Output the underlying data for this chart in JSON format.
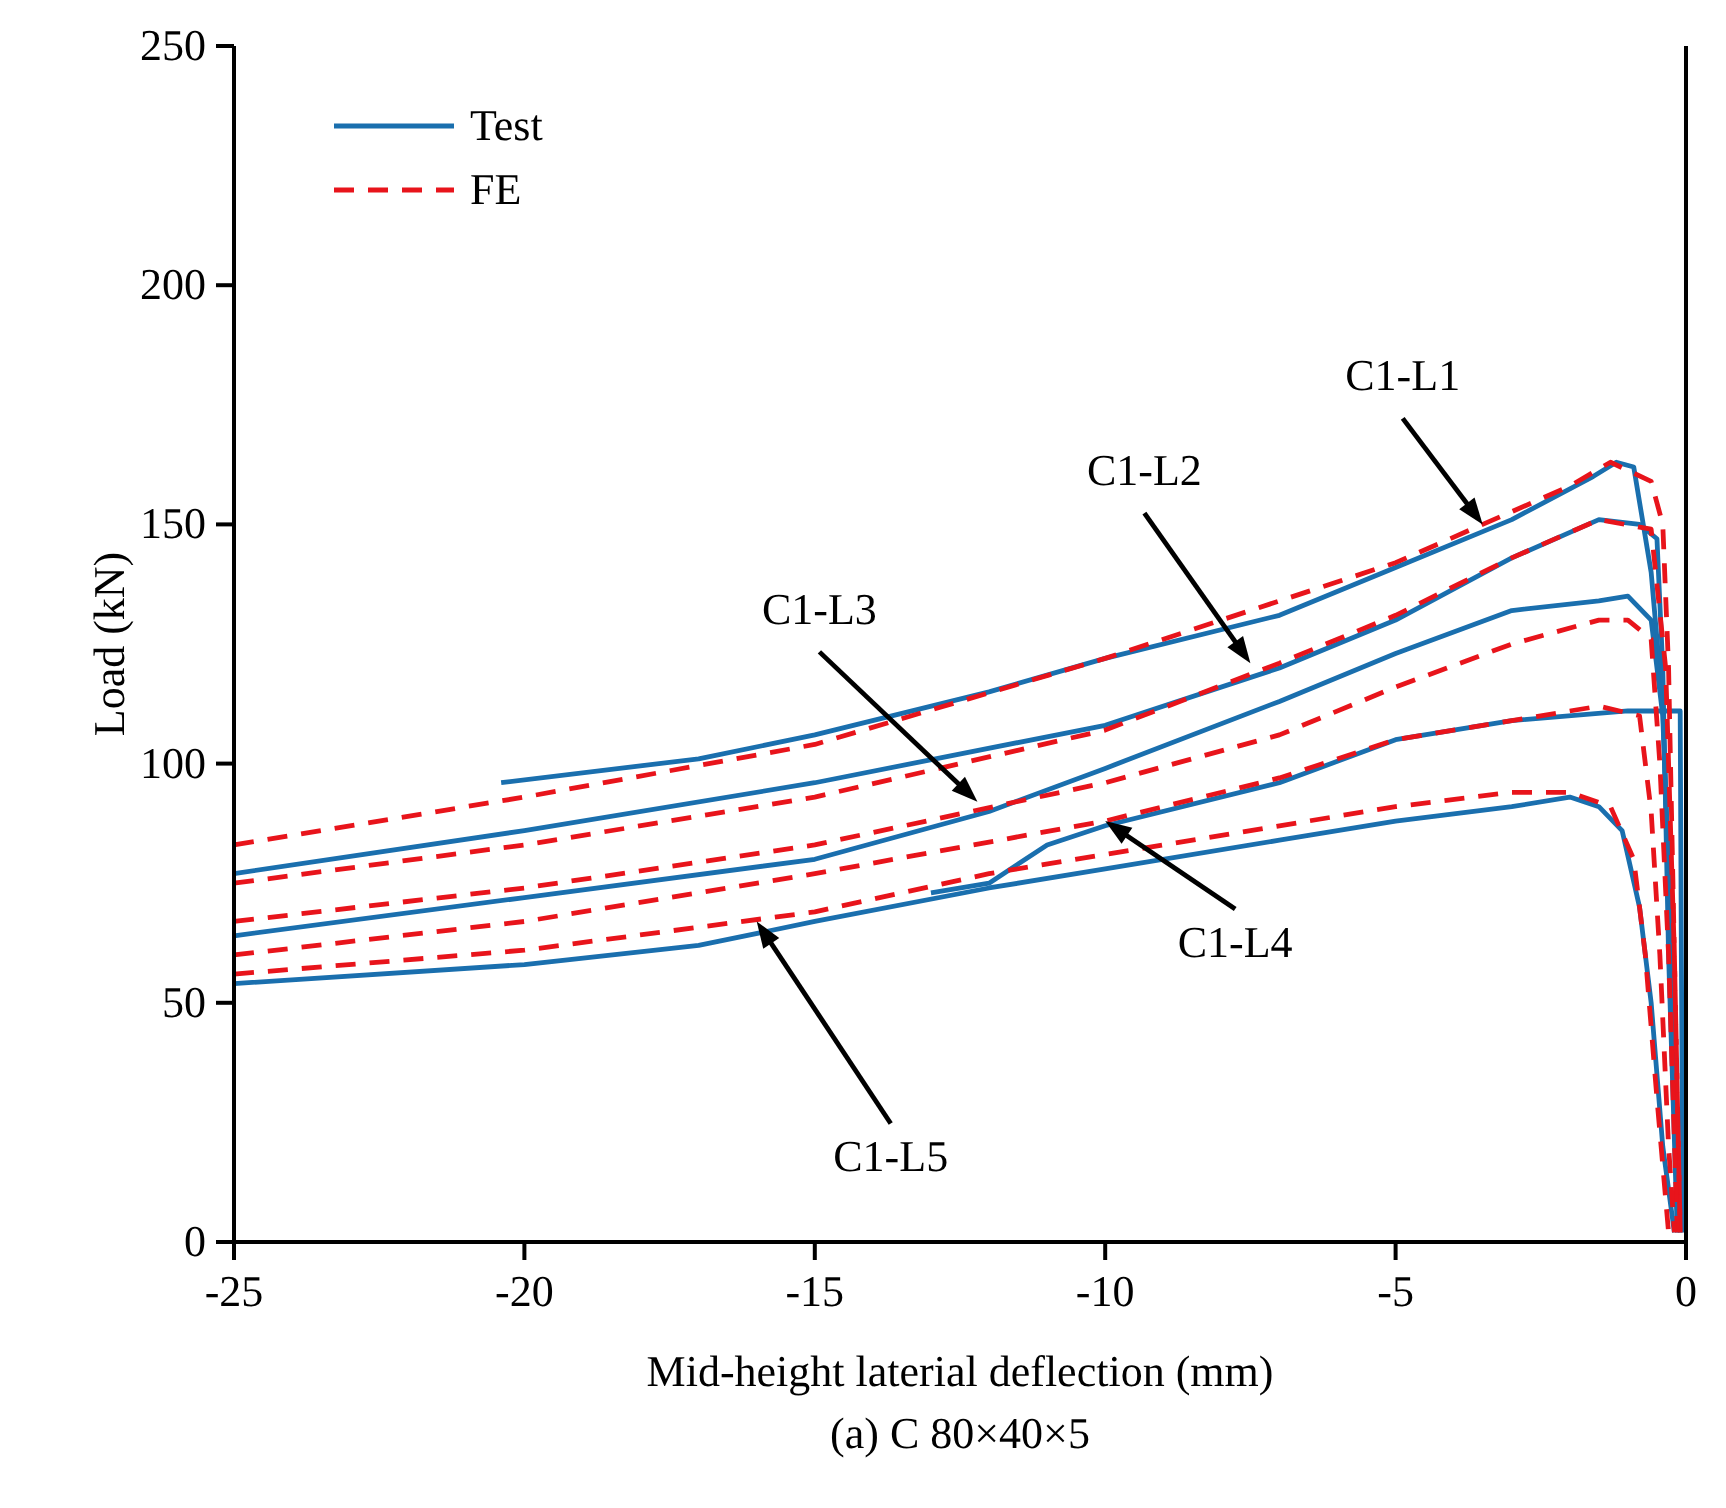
{
  "chart_data": {
    "type": "line",
    "xlabel": "Mid-height laterial deflection (mm)",
    "ylabel": "Load (kN)",
    "title": "(a) C 80×40×5",
    "xlim": [
      -25,
      0
    ],
    "xticks": [
      -25,
      -20,
      -15,
      -10,
      -5,
      0
    ],
    "ylim": [
      0,
      250
    ],
    "yticks": [
      0,
      50,
      100,
      150,
      200,
      250
    ],
    "grid": false,
    "legend": "top left",
    "series": [
      {
        "name": "Test",
        "color": "#1a6fae",
        "line_style": "solid",
        "x": [
          -20.4,
          -17,
          -15,
          -12,
          -10,
          -7,
          -5,
          -3,
          -1.6,
          -1.2,
          -0.9,
          -0.6,
          -0.4,
          -0.25,
          -0.1
        ],
        "values": [
          96,
          101,
          106,
          115,
          122,
          131,
          141,
          151,
          160,
          163,
          162,
          140,
          112,
          60,
          2
        ]
      },
      {
        "color": "#1a6fae",
        "line_style": "solid",
        "x": [
          -25,
          -20,
          -15,
          -10,
          -7,
          -5,
          -3,
          -1.5,
          -0.8,
          -0.5,
          -0.4,
          -0.3,
          -0.15
        ],
        "values": [
          77,
          86,
          96,
          108,
          120,
          130,
          143,
          151,
          150,
          147,
          120,
          60,
          2
        ]
      },
      {
        "color": "#1a6fae",
        "line_style": "solid",
        "x": [
          -25,
          -20,
          -15,
          -12,
          -10,
          -7,
          -5,
          -3,
          -1.5,
          -1,
          -0.6,
          -0.4,
          -0.25,
          -0.12
        ],
        "values": [
          64,
          72,
          80,
          90,
          99,
          113,
          123,
          132,
          134,
          135,
          130,
          110,
          60,
          2
        ]
      },
      {
        "color": "#1a6fae",
        "line_style": "solid",
        "x": [
          -13,
          -12,
          -11,
          -10,
          -7,
          -5,
          -3,
          -1,
          -0.1,
          -0.08,
          -0.05
        ],
        "values": [
          73,
          75,
          83,
          87,
          96,
          105,
          109,
          111,
          111,
          60,
          2
        ]
      },
      {
        "color": "#1a6fae",
        "line_style": "solid",
        "x": [
          -25,
          -20,
          -17,
          -15,
          -12,
          -10,
          -7,
          -5,
          -3,
          -2,
          -1.5,
          -1.1,
          -0.8,
          -0.6,
          -0.4,
          -0.2
        ],
        "values": [
          54,
          58,
          62,
          67,
          74,
          78,
          84,
          88,
          91,
          93,
          91,
          86,
          70,
          50,
          20,
          2
        ]
      },
      {
        "name": "FE",
        "color": "#e8141b",
        "line_style": "dashed",
        "x": [
          -25,
          -20,
          -15,
          -10,
          -5,
          -2,
          -1.3,
          -0.6,
          -0.4,
          -0.3,
          -0.2,
          -0.1
        ],
        "values": [
          83,
          93,
          104,
          122,
          142,
          158,
          163,
          159,
          150,
          120,
          60,
          2
        ]
      },
      {
        "color": "#e8141b",
        "line_style": "dashed",
        "x": [
          -25,
          -20,
          -15,
          -10,
          -7,
          -5,
          -3,
          -1.5,
          -0.6,
          -0.35,
          -0.2,
          -0.1
        ],
        "values": [
          75,
          83,
          93,
          107,
          121,
          131,
          143,
          151,
          149,
          120,
          60,
          2
        ]
      },
      {
        "color": "#e8141b",
        "line_style": "dashed",
        "x": [
          -25,
          -20,
          -15,
          -10,
          -7,
          -5,
          -3,
          -1.5,
          -1,
          -0.6,
          -0.45,
          -0.3,
          -0.15
        ],
        "values": [
          67,
          74,
          83,
          96,
          106,
          116,
          125,
          130,
          130,
          126,
          100,
          60,
          2
        ]
      },
      {
        "color": "#e8141b",
        "line_style": "dashed",
        "x": [
          -25,
          -20,
          -15,
          -10,
          -7,
          -5,
          -3,
          -1.5,
          -0.8,
          -0.6,
          -0.45,
          -0.3,
          -0.2
        ],
        "values": [
          60,
          67,
          77,
          88,
          97,
          105,
          109,
          112,
          110,
          90,
          60,
          20,
          2
        ]
      },
      {
        "color": "#e8141b",
        "line_style": "dashed",
        "x": [
          -25,
          -20,
          -15,
          -12,
          -10,
          -7,
          -5,
          -3,
          -2,
          -1.3,
          -0.9,
          -0.7,
          -0.5,
          -0.3
        ],
        "values": [
          56,
          61,
          69,
          77,
          81,
          87,
          91,
          94,
          94,
          91,
          80,
          60,
          30,
          2
        ]
      }
    ],
    "annotations": [
      {
        "text": "C1-L1",
        "x": -3.5,
        "y": 150
      },
      {
        "text": "C1-L2",
        "x": -7.5,
        "y": 121
      },
      {
        "text": "C1-L3",
        "x": -12.2,
        "y": 92
      },
      {
        "text": "C1-L4",
        "x": -10,
        "y": 88
      },
      {
        "text": "C1-L5",
        "x": -16,
        "y": 67
      }
    ]
  }
}
